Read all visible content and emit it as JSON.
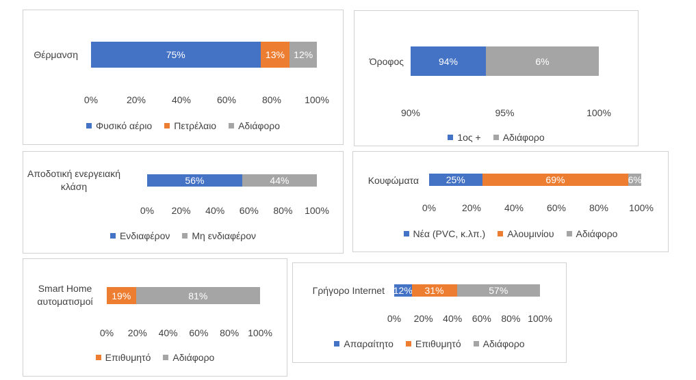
{
  "chart_data": [
    {
      "type": "bar",
      "categories": [
        "Θέρμανση"
      ],
      "series": [
        {
          "name": "Φυσικό αέριο",
          "color": "#4472c4",
          "values": [
            75
          ],
          "value_labels": [
            "75%"
          ]
        },
        {
          "name": "Πετρέλαιο",
          "color": "#ed7d31",
          "values": [
            13
          ],
          "value_labels": [
            "13%"
          ]
        },
        {
          "name": "Αδιάφορο",
          "color": "#a5a5a5",
          "values": [
            12
          ],
          "value_labels": [
            "12%"
          ]
        }
      ],
      "xlim": [
        0,
        100
      ],
      "xticks": [
        {
          "value": 0,
          "label": "0%"
        },
        {
          "value": 20,
          "label": "20%"
        },
        {
          "value": 40,
          "label": "40%"
        },
        {
          "value": 60,
          "label": "60%"
        },
        {
          "value": 80,
          "label": "80%"
        },
        {
          "value": 100,
          "label": "100%"
        }
      ]
    },
    {
      "type": "bar",
      "categories": [
        "Όροφος"
      ],
      "series": [
        {
          "name": "1ος +",
          "color": "#4472c4",
          "values": [
            94
          ],
          "value_labels": [
            "94%"
          ]
        },
        {
          "name": "Αδιάφορο",
          "color": "#a5a5a5",
          "values": [
            6
          ],
          "value_labels": [
            "6%"
          ]
        }
      ],
      "xlim": [
        90,
        100
      ],
      "xticks": [
        {
          "value": 90,
          "label": "90%"
        },
        {
          "value": 95,
          "label": "95%"
        },
        {
          "value": 100,
          "label": "100%"
        }
      ]
    },
    {
      "type": "bar",
      "categories": [
        "Αποδοτική ενεργειακή κλάση"
      ],
      "series": [
        {
          "name": "Ενδιαφέρον",
          "color": "#4472c4",
          "values": [
            56
          ],
          "value_labels": [
            "56%"
          ]
        },
        {
          "name": "Μη ενδιαφέρον",
          "color": "#a5a5a5",
          "values": [
            44
          ],
          "value_labels": [
            "44%"
          ]
        }
      ],
      "xlim": [
        0,
        100
      ],
      "xticks": [
        {
          "value": 0,
          "label": "0%"
        },
        {
          "value": 20,
          "label": "20%"
        },
        {
          "value": 40,
          "label": "40%"
        },
        {
          "value": 60,
          "label": "60%"
        },
        {
          "value": 80,
          "label": "80%"
        },
        {
          "value": 100,
          "label": "100%"
        }
      ]
    },
    {
      "type": "bar",
      "categories": [
        "Κουφώματα"
      ],
      "series": [
        {
          "name": "Νέα (PVC, κ.λπ.)",
          "color": "#4472c4",
          "values": [
            25
          ],
          "value_labels": [
            "25%"
          ]
        },
        {
          "name": "Αλουμινίου",
          "color": "#ed7d31",
          "values": [
            69
          ],
          "value_labels": [
            "69%"
          ]
        },
        {
          "name": "Αδιάφορο",
          "color": "#a5a5a5",
          "values": [
            6
          ],
          "value_labels": [
            "6%"
          ]
        }
      ],
      "xlim": [
        0,
        100
      ],
      "xticks": [
        {
          "value": 0,
          "label": "0%"
        },
        {
          "value": 20,
          "label": "20%"
        },
        {
          "value": 40,
          "label": "40%"
        },
        {
          "value": 60,
          "label": "60%"
        },
        {
          "value": 80,
          "label": "80%"
        },
        {
          "value": 100,
          "label": "100%"
        }
      ]
    },
    {
      "type": "bar",
      "categories": [
        "Smart Home αυτοματισμοί"
      ],
      "series": [
        {
          "name": "Επιθυμητό",
          "color": "#ed7d31",
          "values": [
            19
          ],
          "value_labels": [
            "19%"
          ]
        },
        {
          "name": "Αδιάφορο",
          "color": "#a5a5a5",
          "values": [
            81
          ],
          "value_labels": [
            "81%"
          ]
        }
      ],
      "xlim": [
        0,
        100
      ],
      "xticks": [
        {
          "value": 0,
          "label": "0%"
        },
        {
          "value": 20,
          "label": "20%"
        },
        {
          "value": 40,
          "label": "40%"
        },
        {
          "value": 60,
          "label": "60%"
        },
        {
          "value": 80,
          "label": "80%"
        },
        {
          "value": 100,
          "label": "100%"
        }
      ]
    },
    {
      "type": "bar",
      "categories": [
        "Γρήγορο Internet"
      ],
      "series": [
        {
          "name": "Απαραίτητο",
          "color": "#4472c4",
          "values": [
            12
          ],
          "value_labels": [
            "12%"
          ]
        },
        {
          "name": "Επιθυμητό",
          "color": "#ed7d31",
          "values": [
            31
          ],
          "value_labels": [
            "31%"
          ]
        },
        {
          "name": "Αδιάφορο",
          "color": "#a5a5a5",
          "values": [
            57
          ],
          "value_labels": [
            "57%"
          ]
        }
      ],
      "xlim": [
        0,
        100
      ],
      "xticks": [
        {
          "value": 0,
          "label": "0%"
        },
        {
          "value": 20,
          "label": "20%"
        },
        {
          "value": 40,
          "label": "40%"
        },
        {
          "value": 60,
          "label": "60%"
        },
        {
          "value": 80,
          "label": "80%"
        },
        {
          "value": 100,
          "label": "100%"
        }
      ]
    }
  ]
}
